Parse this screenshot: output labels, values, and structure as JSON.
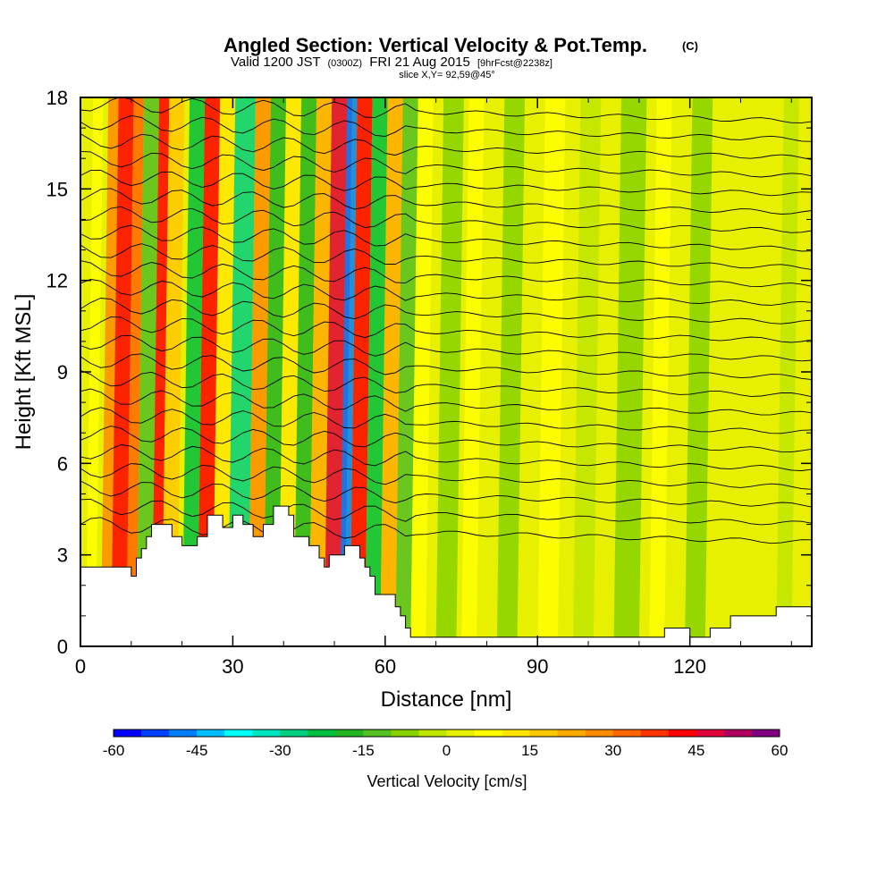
{
  "header": {
    "title": "Angled Section: Vertical Velocity & Pot.Temp.",
    "title_unit": "(C)",
    "valid_prefix": "Valid 1200 JST",
    "valid_utc": "(0300Z)",
    "valid_date": "FRI 21 Aug 2015",
    "forecast": "[9hrFcst@2238z]",
    "slice": "slice X,Y= 92,59@45°"
  },
  "chart_data": {
    "type": "heatmap",
    "title": "Angled Section: Vertical Velocity & Pot.Temp.",
    "xlabel": "Distance [nm]",
    "ylabel": "Height [Kft MSL]",
    "xlim": [
      0,
      144
    ],
    "ylim": [
      0,
      18
    ],
    "x_ticks": [
      "0",
      "30",
      "60",
      "90",
      "120"
    ],
    "x_tick_values": [
      0,
      30,
      60,
      90,
      120
    ],
    "y_ticks": [
      "0",
      "3",
      "6",
      "9",
      "12",
      "15",
      "18"
    ],
    "y_tick_values": [
      0,
      3,
      6,
      9,
      12,
      15,
      18
    ],
    "colorbar": {
      "label": "Vertical Velocity [cm/s]",
      "range": [
        -60,
        60
      ],
      "tick_labels": [
        "-60",
        "-45",
        "-30",
        "-15",
        "0",
        "15",
        "30",
        "45",
        "60"
      ],
      "tick_values": [
        -60,
        -45,
        -30,
        -15,
        0,
        15,
        30,
        45,
        60
      ],
      "colors": [
        "#0000ff",
        "#0040ff",
        "#0080ff",
        "#00bfff",
        "#00ffff",
        "#00e6c0",
        "#00d080",
        "#00c040",
        "#22b422",
        "#55c022",
        "#88d200",
        "#bfe600",
        "#e6f000",
        "#ffff00",
        "#ffe600",
        "#ffc800",
        "#ffaa00",
        "#ff8c00",
        "#ff6600",
        "#ff3300",
        "#ff0000",
        "#e0003a",
        "#b00060",
        "#800080"
      ]
    },
    "terrain": [
      [
        0,
        2.6
      ],
      [
        10,
        2.6
      ],
      [
        10,
        2.3
      ],
      [
        11,
        2.3
      ],
      [
        11,
        2.9
      ],
      [
        12,
        2.9
      ],
      [
        12,
        3.2
      ],
      [
        13,
        3.2
      ],
      [
        13,
        3.6
      ],
      [
        14,
        3.6
      ],
      [
        14,
        4.0
      ],
      [
        18,
        4.0
      ],
      [
        18,
        3.6
      ],
      [
        20,
        3.6
      ],
      [
        20,
        3.3
      ],
      [
        23,
        3.3
      ],
      [
        23,
        3.6
      ],
      [
        25,
        3.6
      ],
      [
        25,
        4.3
      ],
      [
        28,
        4.3
      ],
      [
        28,
        3.9
      ],
      [
        30,
        3.9
      ],
      [
        30,
        4.3
      ],
      [
        32,
        4.3
      ],
      [
        32,
        4.0
      ],
      [
        34,
        4.0
      ],
      [
        34,
        3.6
      ],
      [
        36,
        3.6
      ],
      [
        36,
        4.0
      ],
      [
        38,
        4.0
      ],
      [
        38,
        4.6
      ],
      [
        41,
        4.6
      ],
      [
        41,
        4.3
      ],
      [
        42,
        4.3
      ],
      [
        42,
        3.6
      ],
      [
        45,
        3.6
      ],
      [
        45,
        3.3
      ],
      [
        47,
        3.3
      ],
      [
        47,
        2.9
      ],
      [
        48,
        2.9
      ],
      [
        48,
        2.6
      ],
      [
        49,
        2.6
      ],
      [
        49,
        3.0
      ],
      [
        52,
        3.0
      ],
      [
        52,
        3.3
      ],
      [
        55,
        3.3
      ],
      [
        55,
        2.9
      ],
      [
        56,
        2.9
      ],
      [
        56,
        2.6
      ],
      [
        57,
        2.6
      ],
      [
        57,
        2.3
      ],
      [
        58,
        2.3
      ],
      [
        58,
        1.7
      ],
      [
        62,
        1.7
      ],
      [
        62,
        1.3
      ],
      [
        63,
        1.3
      ],
      [
        63,
        1.0
      ],
      [
        64,
        1.0
      ],
      [
        64,
        0.6
      ],
      [
        65,
        0.6
      ],
      [
        65,
        0.3
      ],
      [
        115,
        0.3
      ],
      [
        115,
        0.6
      ],
      [
        120,
        0.6
      ],
      [
        120,
        0.3
      ],
      [
        124,
        0.3
      ],
      [
        124,
        0.6
      ],
      [
        128,
        0.6
      ],
      [
        128,
        1.0
      ],
      [
        137,
        1.0
      ],
      [
        137,
        1.3
      ],
      [
        144,
        1.3
      ]
    ],
    "vertical_velocity_bands": [
      {
        "x": 1,
        "w": 2,
        "v": 5
      },
      {
        "x": 4,
        "w": 2,
        "v": 25
      },
      {
        "x": 6,
        "w": 3,
        "v": 42
      },
      {
        "x": 9,
        "w": 2,
        "v": 30
      },
      {
        "x": 11,
        "w": 3,
        "v": -15
      },
      {
        "x": 14,
        "w": 2,
        "v": 40
      },
      {
        "x": 16,
        "w": 3,
        "v": 15
      },
      {
        "x": 20,
        "w": 3,
        "v": -25
      },
      {
        "x": 23,
        "w": 3,
        "v": 40
      },
      {
        "x": 26,
        "w": 3,
        "v": 10
      },
      {
        "x": 29,
        "w": 4,
        "v": -30
      },
      {
        "x": 33,
        "w": 3,
        "v": 25
      },
      {
        "x": 36,
        "w": 3,
        "v": -20
      },
      {
        "x": 39,
        "w": 3,
        "v": 10
      },
      {
        "x": 42,
        "w": 3,
        "v": -18
      },
      {
        "x": 45,
        "w": 3,
        "v": 22
      },
      {
        "x": 48,
        "w": 4,
        "v": 45
      },
      {
        "x": 51,
        "w": 2,
        "v": -50
      },
      {
        "x": 53,
        "w": 3,
        "v": 40
      },
      {
        "x": 56,
        "w": 3,
        "v": -25
      },
      {
        "x": 59,
        "w": 3,
        "v": 20
      },
      {
        "x": 62,
        "w": 3,
        "v": -15
      },
      {
        "x": 65,
        "w": 3,
        "v": 8
      },
      {
        "x": 70,
        "w": 4,
        "v": -8
      },
      {
        "x": 75,
        "w": 3,
        "v": 6
      },
      {
        "x": 82,
        "w": 4,
        "v": -6
      },
      {
        "x": 90,
        "w": 4,
        "v": 5
      },
      {
        "x": 97,
        "w": 4,
        "v": -5
      },
      {
        "x": 105,
        "w": 5,
        "v": -10
      },
      {
        "x": 112,
        "w": 3,
        "v": 6
      },
      {
        "x": 119,
        "w": 4,
        "v": -6
      },
      {
        "x": 129,
        "w": 4,
        "v": 4
      },
      {
        "x": 137,
        "w": 3,
        "v": -5
      }
    ],
    "isentropes_y_at_x0": [
      4.0,
      4.6,
      5.2,
      5.8,
      6.4,
      7.0,
      7.6,
      8.2,
      8.8,
      9.4,
      10.0,
      10.6,
      11.2,
      11.8,
      12.4,
      13.0,
      13.6,
      14.2,
      14.8,
      15.4,
      16.0,
      16.6,
      17.2,
      17.8
    ]
  }
}
